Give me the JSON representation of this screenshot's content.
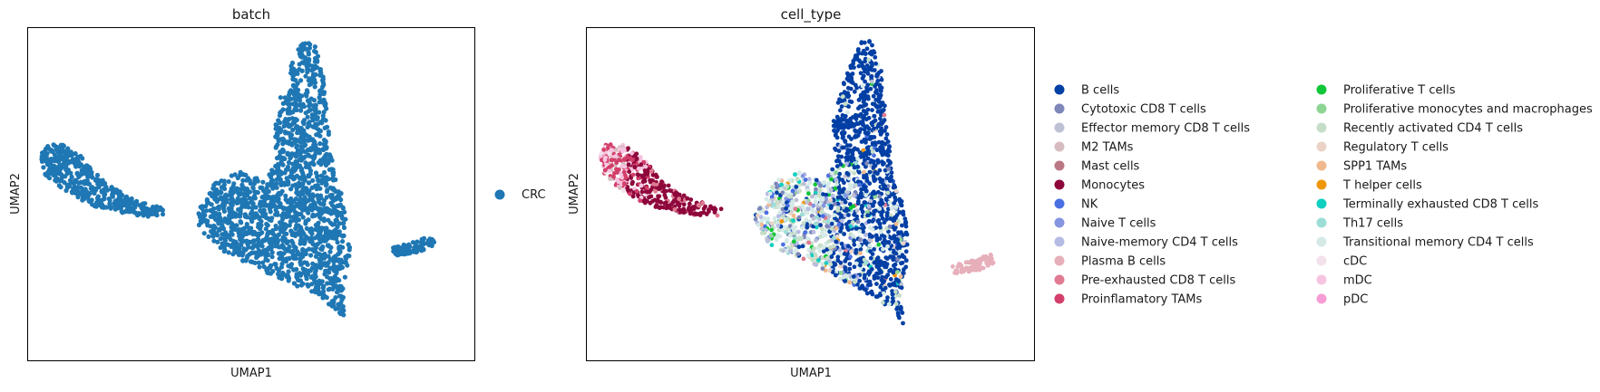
{
  "chart_data": [
    {
      "type": "scatter",
      "title": "batch",
      "xlabel": "UMAP1",
      "ylabel": "UMAP2",
      "ticks": false,
      "grid": false,
      "legend_placement": "right",
      "legend": [
        {
          "label": "CRC",
          "color": "#1f77b4"
        }
      ],
      "clusters": [
        {
          "name": "CRC",
          "color": "#1f77b4",
          "shape": "left-arm"
        },
        {
          "name": "CRC",
          "color": "#1f77b4",
          "shape": "main-body"
        },
        {
          "name": "CRC",
          "color": "#1f77b4",
          "shape": "right-island"
        }
      ]
    },
    {
      "type": "scatter",
      "title": "cell_type",
      "xlabel": "UMAP1",
      "ylabel": "UMAP2",
      "ticks": false,
      "grid": false,
      "legend_placement": "right",
      "legend_columns": [
        [
          {
            "label": "B cells",
            "color": "#023fa5"
          },
          {
            "label": "Cytotoxic CD8 T cells",
            "color": "#7d87b9"
          },
          {
            "label": "Effector memory CD8 T cells",
            "color": "#bec1d4"
          },
          {
            "label": "M2 TAMs",
            "color": "#d6bcc0"
          },
          {
            "label": "Mast cells",
            "color": "#bb7784"
          },
          {
            "label": "Monocytes",
            "color": "#8e063b"
          },
          {
            "label": "NK",
            "color": "#4a6fe3"
          },
          {
            "label": "Naive T cells",
            "color": "#8595e1"
          },
          {
            "label": "Naive-memory CD4 T cells",
            "color": "#b5bbe3"
          },
          {
            "label": "Plasma B cells",
            "color": "#e6afb9"
          },
          {
            "label": "Pre-exhausted CD8 T cells",
            "color": "#e07b91"
          },
          {
            "label": "Proinflamatory TAMs",
            "color": "#d33f6a"
          }
        ],
        [
          {
            "label": "Proliferative T cells",
            "color": "#11c638"
          },
          {
            "label": "Proliferative monocytes and macrophages",
            "color": "#8dd593"
          },
          {
            "label": "Recently activated CD4 T cells",
            "color": "#c6dec7"
          },
          {
            "label": "Regulatory T cells",
            "color": "#ead3c6"
          },
          {
            "label": "SPP1 TAMs",
            "color": "#f0b98d"
          },
          {
            "label": "T helper cells",
            "color": "#ef9708"
          },
          {
            "label": "Terminally exhausted CD8 T cells",
            "color": "#0fcfc0"
          },
          {
            "label": "Th17 cells",
            "color": "#9cded6"
          },
          {
            "label": "Transitional memory CD4 T cells",
            "color": "#d5eae7"
          },
          {
            "label": "cDC",
            "color": "#f3e1eb"
          },
          {
            "label": "mDC",
            "color": "#f6c4e1"
          },
          {
            "label": "pDC",
            "color": "#f79cd4"
          }
        ]
      ]
    }
  ]
}
